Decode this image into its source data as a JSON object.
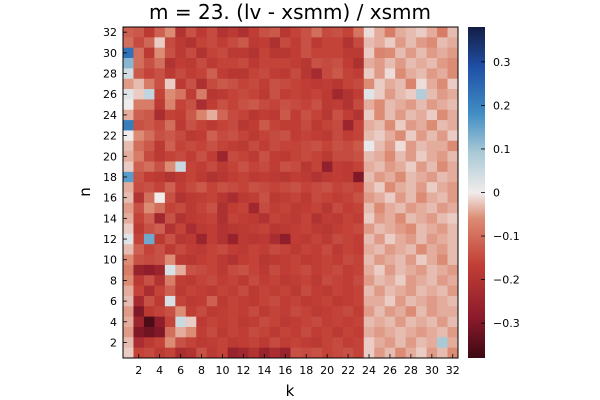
{
  "chart_data": {
    "type": "heatmap",
    "title": "m = 23. (lv - xsmm) / xsmm",
    "xlabel": "k",
    "ylabel": "n",
    "x_range": [
      1,
      32
    ],
    "y_range": [
      1,
      32
    ],
    "x_ticks": [
      2,
      4,
      6,
      8,
      10,
      12,
      14,
      16,
      18,
      20,
      22,
      24,
      26,
      28,
      30,
      32
    ],
    "y_ticks": [
      2,
      4,
      6,
      8,
      10,
      12,
      14,
      16,
      18,
      20,
      22,
      24,
      26,
      28,
      30,
      32
    ],
    "colorbar": {
      "range": [
        -0.38,
        0.38
      ],
      "ticks": [
        -0.3,
        -0.2,
        -0.1,
        0,
        0.1,
        0.2,
        0.3
      ],
      "tick_labels": [
        "−0.3",
        "−0.2",
        "−0.1",
        "0",
        "0.1",
        "0.2",
        "0.3"
      ],
      "colormap": "balance"
    },
    "grid": false,
    "legend": "colorbar-right",
    "row_order": "n=32 (top) to n=1 (bottom); each row lists k=1..32",
    "values": [
      [
        -0.12,
        -0.13,
        -0.18,
        -0.12,
        -0.06,
        -0.2,
        -0.14,
        -0.18,
        -0.15,
        -0.2,
        -0.18,
        -0.21,
        -0.17,
        -0.14,
        -0.13,
        -0.19,
        -0.16,
        -0.14,
        -0.1,
        -0.15,
        -0.14,
        -0.16,
        -0.09,
        -0.01,
        -0.04,
        -0.08,
        -0.04,
        -0.03,
        -0.02,
        -0.04,
        -0.08,
        -0.03
      ],
      [
        -0.1,
        -0.15,
        -0.11,
        -0.02,
        -0.15,
        -0.18,
        -0.2,
        -0.16,
        -0.15,
        -0.17,
        -0.15,
        -0.13,
        -0.18,
        -0.17,
        -0.21,
        -0.15,
        -0.17,
        -0.14,
        -0.18,
        -0.16,
        -0.16,
        -0.2,
        -0.15,
        -0.03,
        -0.04,
        -0.02,
        -0.05,
        -0.03,
        -0.05,
        -0.06,
        -0.03,
        -0.04
      ],
      [
        0.23,
        -0.1,
        -0.18,
        -0.06,
        -0.14,
        -0.18,
        -0.15,
        -0.2,
        -0.16,
        -0.15,
        -0.18,
        -0.18,
        -0.2,
        -0.16,
        -0.19,
        -0.19,
        -0.17,
        -0.14,
        -0.16,
        -0.16,
        -0.16,
        -0.18,
        -0.18,
        -0.02,
        -0.07,
        -0.06,
        -0.03,
        -0.05,
        -0.03,
        -0.05,
        -0.04,
        -0.05
      ],
      [
        0.12,
        -0.1,
        -0.14,
        -0.1,
        -0.2,
        -0.17,
        -0.18,
        -0.15,
        -0.18,
        -0.16,
        -0.16,
        -0.15,
        -0.18,
        -0.16,
        -0.16,
        -0.16,
        -0.17,
        -0.19,
        -0.14,
        -0.15,
        -0.14,
        -0.17,
        -0.21,
        -0.04,
        -0.05,
        -0.03,
        -0.05,
        -0.03,
        -0.04,
        -0.03,
        -0.05,
        -0.06
      ],
      [
        0.04,
        -0.13,
        -0.16,
        -0.14,
        -0.18,
        -0.15,
        -0.17,
        -0.16,
        -0.12,
        -0.17,
        -0.19,
        -0.19,
        -0.16,
        -0.15,
        -0.17,
        -0.18,
        -0.15,
        -0.19,
        -0.23,
        -0.15,
        -0.13,
        -0.16,
        -0.17,
        -0.02,
        -0.05,
        -0.01,
        -0.06,
        -0.04,
        -0.03,
        -0.05,
        -0.04,
        -0.06
      ],
      [
        -0.05,
        -0.03,
        -0.08,
        -0.14,
        -0.02,
        -0.18,
        -0.14,
        -0.21,
        -0.15,
        -0.13,
        -0.14,
        -0.16,
        -0.15,
        -0.17,
        -0.14,
        -0.15,
        -0.16,
        -0.17,
        -0.18,
        -0.17,
        -0.19,
        -0.16,
        -0.15,
        -0.06,
        -0.02,
        -0.04,
        -0.03,
        -0.07,
        -0.01,
        -0.04,
        -0.06,
        -0.02
      ],
      [
        0.02,
        -0.02,
        0.06,
        -0.16,
        -0.06,
        -0.09,
        -0.17,
        -0.08,
        -0.19,
        -0.18,
        -0.16,
        -0.15,
        -0.16,
        -0.18,
        -0.14,
        -0.17,
        -0.16,
        -0.17,
        -0.16,
        -0.18,
        -0.24,
        -0.2,
        -0.17,
        0.02,
        -0.02,
        -0.05,
        -0.03,
        -0.02,
        0.08,
        -0.03,
        -0.05,
        -0.04
      ],
      [
        0.0,
        -0.08,
        -0.08,
        -0.18,
        -0.07,
        -0.16,
        -0.14,
        -0.22,
        -0.17,
        -0.14,
        -0.16,
        -0.14,
        -0.13,
        -0.15,
        -0.16,
        -0.14,
        -0.15,
        -0.16,
        -0.14,
        -0.18,
        -0.17,
        -0.2,
        -0.15,
        -0.04,
        -0.06,
        -0.03,
        -0.04,
        -0.05,
        -0.03,
        -0.05,
        -0.04,
        -0.03
      ],
      [
        -0.04,
        -0.12,
        -0.13,
        -0.22,
        -0.16,
        -0.17,
        -0.13,
        -0.07,
        -0.04,
        -0.11,
        -0.15,
        -0.16,
        -0.19,
        -0.17,
        -0.18,
        -0.13,
        -0.17,
        -0.14,
        -0.16,
        -0.19,
        -0.14,
        -0.17,
        -0.2,
        -0.02,
        -0.06,
        -0.03,
        -0.05,
        -0.03,
        -0.04,
        -0.02,
        -0.06,
        -0.04
      ],
      [
        0.21,
        -0.14,
        -0.13,
        -0.15,
        -0.1,
        -0.18,
        -0.14,
        -0.16,
        -0.18,
        -0.16,
        -0.15,
        -0.19,
        -0.17,
        -0.13,
        -0.16,
        -0.17,
        -0.17,
        -0.15,
        -0.18,
        -0.16,
        -0.15,
        -0.25,
        -0.16,
        -0.04,
        -0.03,
        -0.06,
        -0.02,
        -0.05,
        -0.04,
        -0.06,
        -0.03,
        -0.04
      ],
      [
        0.0,
        -0.06,
        -0.1,
        -0.14,
        -0.13,
        -0.15,
        -0.18,
        -0.17,
        -0.12,
        -0.15,
        -0.14,
        -0.16,
        -0.18,
        -0.16,
        -0.15,
        -0.14,
        -0.17,
        -0.16,
        -0.17,
        -0.18,
        -0.15,
        -0.17,
        -0.16,
        -0.03,
        -0.02,
        -0.04,
        -0.06,
        -0.02,
        -0.05,
        -0.03,
        -0.05,
        -0.02
      ],
      [
        -0.03,
        -0.1,
        -0.13,
        -0.18,
        -0.12,
        -0.16,
        -0.15,
        -0.16,
        -0.14,
        -0.16,
        -0.17,
        -0.18,
        -0.15,
        -0.17,
        -0.15,
        -0.16,
        -0.16,
        -0.15,
        -0.14,
        -0.16,
        -0.14,
        -0.15,
        -0.13,
        0.01,
        -0.03,
        -0.05,
        -0.01,
        -0.05,
        -0.03,
        -0.04,
        -0.04,
        -0.06
      ],
      [
        -0.04,
        -0.08,
        -0.15,
        -0.18,
        -0.16,
        -0.15,
        -0.17,
        -0.14,
        -0.17,
        -0.25,
        -0.15,
        -0.16,
        -0.18,
        -0.14,
        -0.17,
        -0.18,
        -0.16,
        -0.15,
        -0.16,
        -0.18,
        -0.15,
        -0.15,
        -0.14,
        -0.03,
        -0.04,
        -0.06,
        -0.03,
        -0.05,
        -0.02,
        -0.04,
        -0.05,
        -0.03
      ],
      [
        -0.02,
        -0.12,
        -0.1,
        -0.14,
        -0.06,
        0.05,
        -0.16,
        -0.17,
        -0.15,
        -0.18,
        -0.16,
        -0.14,
        -0.16,
        -0.15,
        -0.17,
        -0.14,
        -0.15,
        -0.19,
        -0.16,
        -0.27,
        -0.17,
        -0.18,
        -0.16,
        -0.04,
        -0.03,
        -0.05,
        -0.04,
        -0.02,
        -0.05,
        -0.03,
        -0.06,
        -0.04
      ],
      [
        0.16,
        -0.14,
        -0.17,
        -0.18,
        -0.2,
        -0.18,
        -0.16,
        -0.18,
        -0.2,
        -0.19,
        -0.17,
        -0.16,
        -0.18,
        -0.17,
        -0.18,
        -0.19,
        -0.17,
        -0.18,
        -0.2,
        -0.18,
        -0.17,
        -0.18,
        -0.3,
        -0.03,
        -0.05,
        -0.04,
        -0.06,
        -0.03,
        -0.04,
        -0.05,
        -0.03,
        -0.04
      ],
      [
        -0.04,
        -0.15,
        -0.14,
        -0.16,
        -0.12,
        -0.17,
        -0.15,
        -0.13,
        -0.16,
        -0.14,
        -0.15,
        -0.16,
        -0.14,
        -0.15,
        -0.16,
        -0.15,
        -0.14,
        -0.16,
        -0.15,
        -0.14,
        -0.16,
        -0.15,
        -0.16,
        -0.04,
        -0.02,
        -0.06,
        -0.04,
        -0.03,
        -0.05,
        -0.02,
        -0.04,
        -0.05
      ],
      [
        -0.03,
        -0.2,
        -0.1,
        0.0,
        -0.14,
        -0.2,
        -0.18,
        -0.17,
        -0.16,
        -0.19,
        -0.22,
        -0.18,
        -0.17,
        -0.14,
        -0.18,
        -0.17,
        -0.16,
        -0.18,
        -0.15,
        -0.16,
        -0.17,
        -0.16,
        -0.14,
        -0.05,
        -0.04,
        -0.02,
        -0.05,
        -0.03,
        -0.06,
        -0.04,
        -0.03,
        -0.05
      ],
      [
        -0.05,
        -0.14,
        -0.06,
        -0.1,
        -0.16,
        -0.15,
        -0.18,
        -0.16,
        -0.14,
        -0.21,
        -0.17,
        -0.16,
        -0.24,
        -0.15,
        -0.17,
        -0.16,
        -0.18,
        -0.17,
        -0.16,
        -0.19,
        -0.15,
        -0.17,
        -0.16,
        -0.03,
        -0.06,
        -0.04,
        -0.03,
        -0.05,
        -0.04,
        -0.03,
        -0.05,
        -0.04
      ],
      [
        -0.04,
        -0.16,
        -0.12,
        -0.24,
        -0.14,
        -0.2,
        -0.18,
        -0.17,
        -0.16,
        -0.21,
        -0.16,
        -0.17,
        -0.18,
        -0.2,
        -0.16,
        -0.17,
        -0.18,
        -0.16,
        -0.2,
        -0.17,
        -0.18,
        -0.16,
        -0.17,
        -0.02,
        -0.05,
        -0.04,
        -0.06,
        -0.03,
        -0.04,
        -0.05,
        -0.03,
        -0.02
      ],
      [
        -0.02,
        -0.18,
        -0.14,
        -0.12,
        -0.2,
        -0.16,
        -0.22,
        -0.18,
        -0.17,
        -0.2,
        -0.19,
        -0.18,
        -0.17,
        -0.16,
        -0.19,
        -0.18,
        -0.17,
        -0.16,
        -0.18,
        -0.19,
        -0.17,
        -0.16,
        -0.15,
        -0.05,
        -0.03,
        -0.04,
        -0.05,
        -0.06,
        -0.03,
        -0.04,
        -0.05,
        -0.03
      ],
      [
        0.02,
        -0.16,
        0.14,
        -0.18,
        -0.14,
        -0.19,
        -0.18,
        -0.25,
        -0.17,
        -0.2,
        -0.26,
        -0.18,
        -0.19,
        -0.18,
        -0.22,
        -0.28,
        -0.17,
        -0.18,
        -0.16,
        -0.18,
        -0.15,
        -0.16,
        -0.17,
        -0.03,
        -0.05,
        -0.02,
        -0.04,
        -0.05,
        -0.03,
        -0.05,
        -0.04,
        -0.03
      ],
      [
        -0.03,
        -0.12,
        -0.16,
        -0.14,
        -0.18,
        -0.15,
        -0.17,
        -0.18,
        -0.16,
        -0.15,
        -0.17,
        -0.18,
        -0.16,
        -0.17,
        -0.15,
        -0.16,
        -0.18,
        -0.16,
        -0.17,
        -0.15,
        -0.18,
        -0.16,
        -0.17,
        -0.04,
        -0.03,
        -0.05,
        -0.04,
        -0.03,
        -0.06,
        -0.04,
        -0.05,
        -0.03
      ],
      [
        -0.06,
        -0.14,
        -0.15,
        -0.14,
        -0.06,
        -0.18,
        -0.19,
        -0.17,
        -0.16,
        -0.18,
        -0.2,
        -0.17,
        -0.16,
        -0.19,
        -0.18,
        -0.17,
        -0.16,
        -0.18,
        -0.17,
        -0.16,
        -0.17,
        -0.15,
        -0.16,
        -0.03,
        -0.05,
        -0.04,
        -0.03,
        -0.05,
        -0.02,
        -0.04,
        -0.06,
        -0.03
      ],
      [
        -0.08,
        -0.26,
        -0.28,
        -0.25,
        0.03,
        -0.04,
        -0.14,
        -0.15,
        -0.16,
        -0.18,
        -0.15,
        -0.14,
        -0.16,
        -0.18,
        -0.15,
        -0.17,
        -0.16,
        -0.15,
        -0.17,
        -0.16,
        -0.15,
        -0.17,
        -0.16,
        -0.04,
        -0.02,
        -0.05,
        -0.03,
        -0.04,
        -0.05,
        -0.03,
        -0.04,
        -0.05
      ],
      [
        -0.06,
        -0.18,
        -0.14,
        -0.2,
        -0.08,
        -0.17,
        -0.18,
        -0.16,
        -0.15,
        -0.17,
        -0.16,
        -0.18,
        -0.15,
        -0.17,
        -0.16,
        -0.18,
        -0.17,
        -0.16,
        -0.18,
        -0.15,
        -0.16,
        -0.17,
        -0.15,
        -0.05,
        -0.03,
        -0.04,
        -0.02,
        -0.05,
        -0.04,
        -0.03,
        -0.05,
        -0.04
      ],
      [
        -0.04,
        -0.16,
        -0.22,
        -0.16,
        -0.12,
        -0.18,
        -0.16,
        -0.17,
        -0.18,
        -0.16,
        -0.17,
        -0.15,
        -0.18,
        -0.16,
        -0.17,
        -0.16,
        -0.18,
        -0.15,
        -0.17,
        -0.18,
        -0.16,
        -0.17,
        -0.16,
        -0.03,
        -0.05,
        -0.03,
        -0.04,
        -0.05,
        -0.03,
        -0.04,
        -0.03,
        -0.05
      ],
      [
        -0.03,
        -0.23,
        -0.14,
        -0.18,
        0.03,
        -0.16,
        -0.18,
        -0.17,
        -0.12,
        -0.18,
        -0.16,
        -0.17,
        -0.18,
        -0.16,
        -0.15,
        -0.17,
        -0.16,
        -0.18,
        -0.17,
        -0.16,
        -0.18,
        -0.17,
        -0.16,
        -0.04,
        -0.04,
        -0.02,
        -0.05,
        -0.03,
        -0.04,
        -0.05,
        -0.04,
        -0.03
      ],
      [
        -0.05,
        -0.3,
        -0.18,
        -0.16,
        -0.14,
        -0.06,
        -0.17,
        -0.15,
        -0.18,
        -0.17,
        -0.16,
        -0.17,
        -0.15,
        -0.18,
        -0.16,
        -0.17,
        -0.15,
        -0.16,
        -0.18,
        -0.17,
        -0.16,
        -0.15,
        -0.17,
        -0.05,
        -0.03,
        -0.05,
        -0.04,
        -0.06,
        -0.03,
        -0.05,
        -0.04,
        -0.04
      ],
      [
        -0.04,
        -0.25,
        -0.36,
        -0.28,
        -0.16,
        0.05,
        -0.02,
        -0.18,
        -0.16,
        -0.17,
        -0.16,
        -0.18,
        -0.17,
        -0.15,
        -0.16,
        -0.18,
        -0.17,
        -0.16,
        -0.15,
        -0.17,
        -0.16,
        -0.17,
        -0.16,
        -0.03,
        -0.04,
        -0.03,
        -0.05,
        -0.03,
        -0.04,
        -0.03,
        -0.05,
        -0.03
      ],
      [
        -0.05,
        -0.3,
        -0.32,
        -0.3,
        -0.1,
        -0.04,
        -0.06,
        -0.17,
        -0.15,
        -0.18,
        -0.16,
        -0.17,
        -0.15,
        -0.16,
        -0.18,
        -0.16,
        -0.17,
        -0.15,
        -0.17,
        -0.16,
        -0.18,
        -0.16,
        -0.17,
        -0.04,
        -0.05,
        -0.04,
        -0.03,
        -0.04,
        -0.05,
        -0.04,
        -0.03,
        -0.05
      ],
      [
        -0.03,
        -0.22,
        -0.18,
        -0.16,
        -0.06,
        -0.14,
        -0.16,
        -0.18,
        -0.17,
        -0.16,
        -0.18,
        -0.17,
        -0.16,
        -0.18,
        -0.15,
        -0.17,
        -0.16,
        -0.17,
        -0.18,
        -0.16,
        -0.15,
        -0.17,
        -0.16,
        -0.02,
        -0.04,
        -0.05,
        -0.03,
        -0.05,
        -0.03,
        -0.04,
        0.09,
        -0.04
      ],
      [
        -0.02,
        -0.16,
        -0.15,
        -0.18,
        -0.16,
        -0.22,
        -0.2,
        -0.14,
        -0.18,
        -0.16,
        -0.26,
        -0.24,
        -0.2,
        -0.26,
        -0.22,
        -0.26,
        -0.14,
        -0.15,
        -0.14,
        -0.16,
        -0.15,
        -0.14,
        -0.16,
        -0.02,
        -0.05,
        -0.03,
        -0.06,
        -0.04,
        -0.02,
        -0.05,
        -0.03,
        -0.06
      ]
    ]
  }
}
